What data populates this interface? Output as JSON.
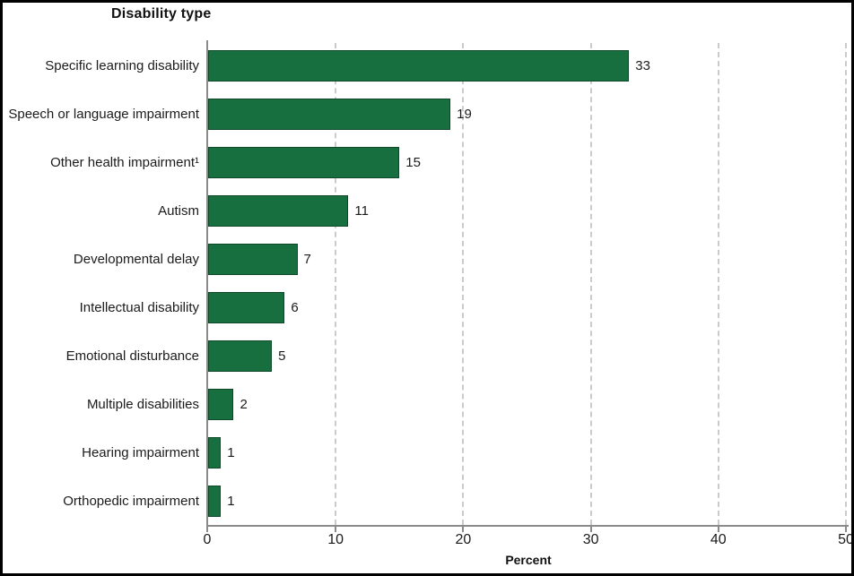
{
  "chart": {
    "title": "Disability type",
    "x_axis_title": "Percent"
  },
  "chart_data": {
    "type": "bar",
    "orientation": "horizontal",
    "title": "Disability type",
    "xlabel": "Percent",
    "xlim": [
      0,
      50
    ],
    "xticks": [
      0,
      10,
      20,
      30,
      40,
      50
    ],
    "grid": "vertical-dashed",
    "legend": "none",
    "value_labels_shown": true,
    "categories": [
      "Specific learning disability",
      "Speech or language impairment",
      "Other health impairment¹",
      "Autism",
      "Developmental delay",
      "Intellectual disability",
      "Emotional disturbance",
      "Multiple disabilities",
      "Hearing impairment",
      "Orthopedic impairment"
    ],
    "values": [
      33,
      19,
      15,
      11,
      7,
      6,
      5,
      2,
      1,
      1
    ]
  },
  "colors": {
    "bar": "#176F3F",
    "axis_line": "#8a8a8a",
    "gridline": "#cbcbcb",
    "text": "#1b1b1b",
    "frame_border": "#000000",
    "background": "#ffffff"
  }
}
